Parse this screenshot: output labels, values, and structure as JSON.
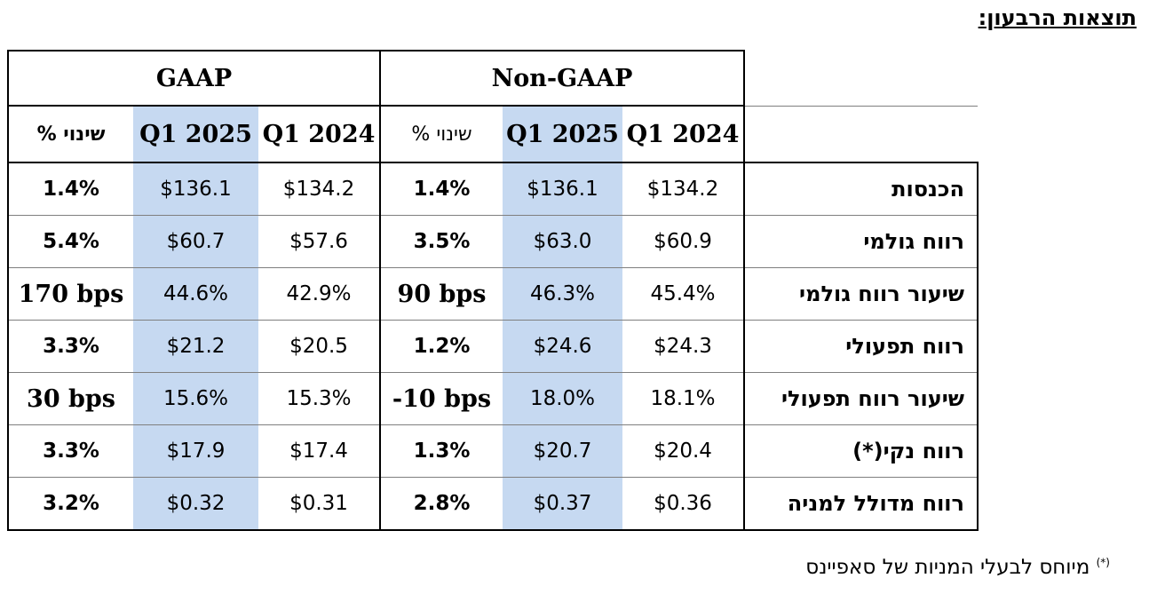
{
  "title": "תוצאות הרבעון:",
  "groups": {
    "gaap": "GAAP",
    "non_gaap": "Non-GAAP"
  },
  "columns": {
    "change": "% שינוי",
    "q1_2025": "Q1 2025",
    "q1_2024": "Q1 2024"
  },
  "rows": [
    {
      "label": "הכנסות",
      "gaap_change": "1.4%",
      "gaap_2025": "$136.1",
      "gaap_2024": "$134.2",
      "ng_change": "1.4%",
      "ng_2025": "$136.1",
      "ng_2024": "$134.2"
    },
    {
      "label": "רווח גולמי",
      "gaap_change": "5.4%",
      "gaap_2025": "$60.7",
      "gaap_2024": "$57.6",
      "ng_change": "3.5%",
      "ng_2025": "$63.0",
      "ng_2024": "$60.9"
    },
    {
      "label": "שיעור רווח גולמי",
      "gaap_change": "170 bps",
      "gaap_2025": "44.6%",
      "gaap_2024": "42.9%",
      "ng_change": "90 bps",
      "ng_2025": "46.3%",
      "ng_2024": "45.4%"
    },
    {
      "label": "רווח תפעולי",
      "gaap_change": "3.3%",
      "gaap_2025": "$21.2",
      "gaap_2024": "$20.5",
      "ng_change": "1.2%",
      "ng_2025": "$24.6",
      "ng_2024": "$24.3"
    },
    {
      "label": "שיעור רווח תפעולי",
      "gaap_change": "30 bps",
      "gaap_2025": "15.6%",
      "gaap_2024": "15.3%",
      "ng_change": "-10 bps",
      "ng_2025": "18.0%",
      "ng_2024": "18.1%"
    },
    {
      "label": "רווח נקי(*)",
      "gaap_change": "3.3%",
      "gaap_2025": "$17.9",
      "gaap_2024": "$17.4",
      "ng_change": "1.3%",
      "ng_2025": "$20.7",
      "ng_2024": "$20.4"
    },
    {
      "label": "רווח מדולל למניה",
      "gaap_change": "3.2%",
      "gaap_2025": "$0.32",
      "gaap_2024": "$0.31",
      "ng_change": "2.8%",
      "ng_2025": "$0.37",
      "ng_2024": "$0.36"
    }
  ],
  "footnote": {
    "mark": "(*)",
    "text": "מיוחס לבעלי המניות של סאפיינס"
  }
}
